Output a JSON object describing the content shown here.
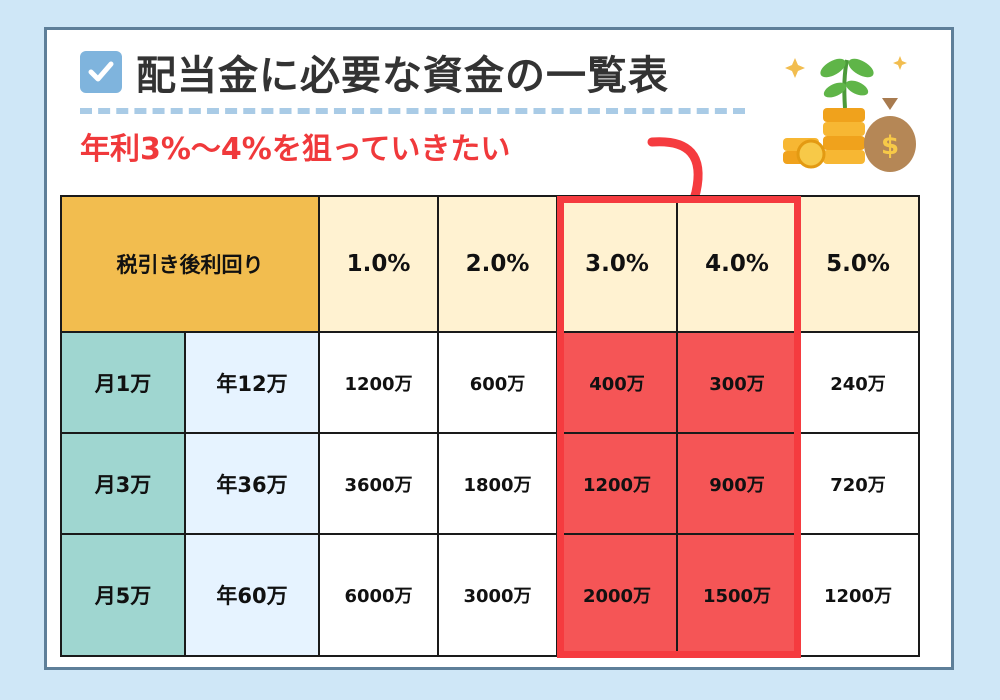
{
  "title": "配当金に必要な資金の一覧表",
  "subtitle": "年利3%〜4%を狙っていきたい",
  "icons": {
    "check": "checkbox-icon",
    "decoration": "money-plant-icon",
    "arrow": "curved-arrow-icon"
  },
  "colors": {
    "accent": "#f0393b",
    "highlight": "#f55556",
    "header": "#f2bd4f",
    "rate_header": "#fff2d1",
    "month": "#9fd6d0",
    "year": "#e6f3ff"
  },
  "table": {
    "corner_label": "税引き後利回り",
    "rates": [
      "1.0%",
      "2.0%",
      "3.0%",
      "4.0%",
      "5.0%"
    ],
    "rows": [
      {
        "month": "月1万",
        "year": "年12万",
        "values": [
          "1200万",
          "600万",
          "400万",
          "300万",
          "240万"
        ]
      },
      {
        "month": "月3万",
        "year": "年36万",
        "values": [
          "3600万",
          "1800万",
          "1200万",
          "900万",
          "720万"
        ]
      },
      {
        "month": "月5万",
        "year": "年60万",
        "values": [
          "6000万",
          "3000万",
          "2000万",
          "1500万",
          "1200万"
        ]
      }
    ]
  }
}
